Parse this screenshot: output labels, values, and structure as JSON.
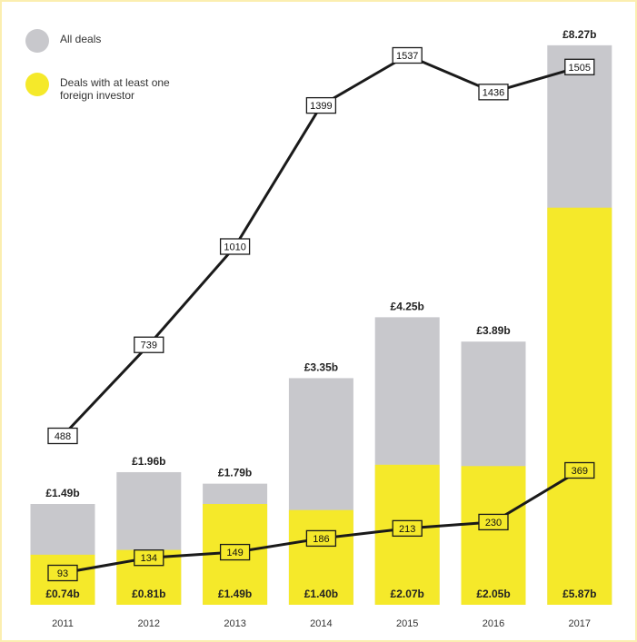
{
  "chart_data": {
    "type": "bar",
    "categories": [
      "2011",
      "2012",
      "2013",
      "2014",
      "2015",
      "2016",
      "2017"
    ],
    "series": [
      {
        "name": "All deals",
        "color": "#c8c8cc",
        "values": [
          1.49,
          1.96,
          1.79,
          3.35,
          4.25,
          3.89,
          8.27
        ],
        "labels": [
          "£1.49b",
          "£1.96b",
          "£1.79b",
          "£3.35b",
          "£4.25b",
          "£3.89b",
          "£8.27b"
        ]
      },
      {
        "name": "Deals with at least one foreign investor",
        "color": "#f5e92a",
        "values": [
          0.74,
          0.81,
          1.49,
          1.4,
          2.07,
          2.05,
          5.87
        ],
        "labels": [
          "£0.74b",
          "£0.81b",
          "£1.49b",
          "£1.40b",
          "£2.07b",
          "£2.05b",
          "£5.87b"
        ]
      }
    ],
    "line_series": [
      {
        "values": [
          488,
          739,
          1010,
          1399,
          1537,
          1436,
          1505
        ]
      },
      {
        "values": [
          93,
          134,
          149,
          186,
          213,
          230,
          369
        ]
      }
    ],
    "legend_position": "top-left",
    "title": "",
    "xlabel": "",
    "ylabel": ""
  }
}
